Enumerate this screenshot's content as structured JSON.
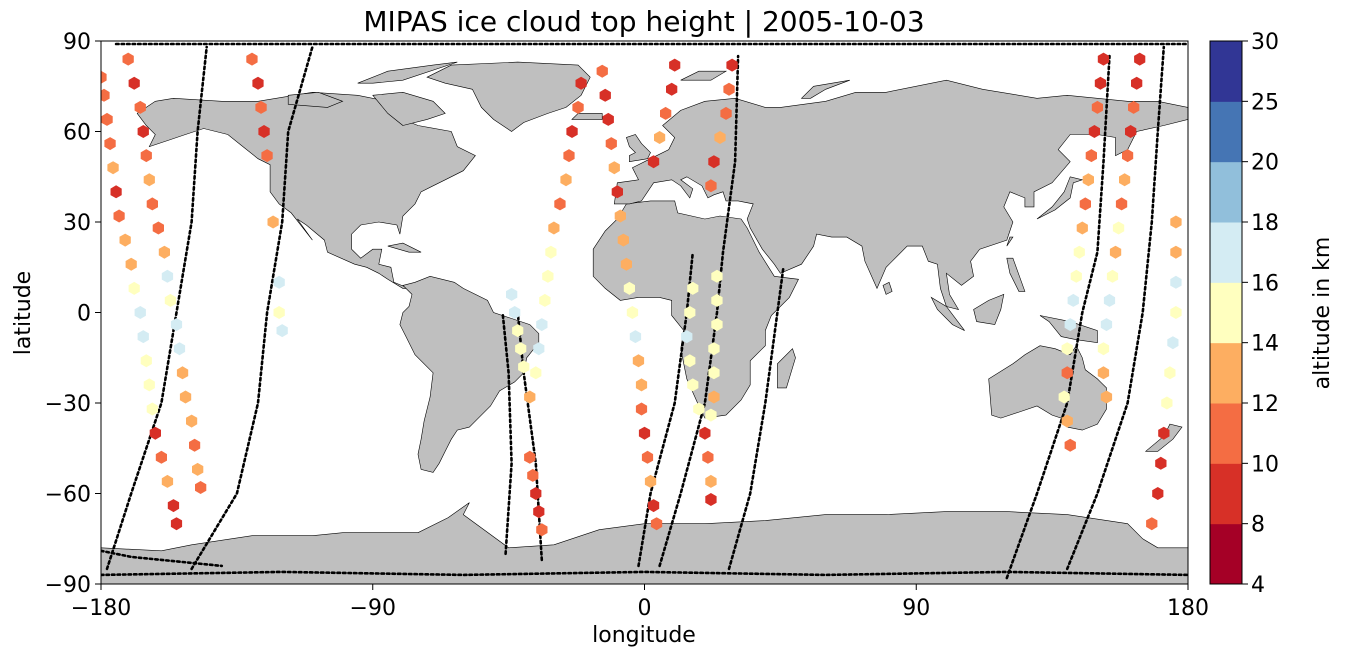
{
  "chart_data": {
    "type": "scatter",
    "title": "MIPAS ice cloud top height | 2005-10-03",
    "xlabel": "longitude",
    "ylabel": "latitude",
    "xlim": [
      -180,
      180
    ],
    "ylim": [
      -90,
      90
    ],
    "xticks": [
      -180,
      -90,
      0,
      90,
      180
    ],
    "xtick_labels": [
      "−180",
      "−90",
      "0",
      "90",
      "180"
    ],
    "yticks": [
      -90,
      -60,
      -30,
      0,
      30,
      60,
      90
    ],
    "ytick_labels": [
      "−90",
      "−60",
      "−30",
      "0",
      "30",
      "60",
      "90"
    ],
    "land_color": "#bfbfbf",
    "track_color": "#000000",
    "colorbar": {
      "label": "altitude in km",
      "boundaries": [
        4,
        8,
        10,
        12,
        14,
        16,
        18,
        20,
        25,
        30
      ],
      "tick_labels": [
        "4",
        "8",
        "10",
        "12",
        "14",
        "16",
        "18",
        "20",
        "25",
        "30"
      ],
      "colors": [
        "#a50026",
        "#d73027",
        "#f46d43",
        "#fdae61",
        "#fee090",
        "#ffffbf",
        "#e0f3f8",
        "#abd9e9",
        "#74add1",
        "#313695"
      ],
      "color_bins": [
        "#a50026",
        "#d73027",
        "#f46d43",
        "#fdae61",
        "#ffffbf",
        "#d4ecf3",
        "#91bfdb",
        "#4575b4",
        "#313695"
      ]
    },
    "series": [
      {
        "values": [
          [
            -180,
            78
          ],
          [
            -179,
            72
          ],
          [
            -178,
            64
          ],
          [
            -177,
            56
          ],
          [
            -176,
            48
          ],
          [
            -175,
            40
          ],
          [
            -174,
            32
          ],
          [
            -172,
            24
          ],
          [
            -170,
            16
          ],
          [
            -169,
            8
          ],
          [
            -167,
            0
          ],
          [
            -166,
            -8
          ],
          [
            -165,
            -16
          ],
          [
            -164,
            -24
          ],
          [
            -163,
            -32
          ],
          [
            -162,
            -40
          ],
          [
            -160,
            -48
          ],
          [
            -158,
            -56
          ],
          [
            -156,
            -64
          ],
          [
            -155,
            -70
          ]
        ]
      },
      {
        "values": [
          [
            -171,
            84
          ],
          [
            -169,
            76
          ],
          [
            -167,
            68
          ],
          [
            -166,
            60
          ],
          [
            -165,
            52
          ],
          [
            -164,
            44
          ],
          [
            -163,
            36
          ],
          [
            -161,
            28
          ],
          [
            -159,
            20
          ],
          [
            -158,
            12
          ],
          [
            -157,
            4
          ],
          [
            -155,
            -4
          ],
          [
            -154,
            -12
          ],
          [
            -153,
            -20
          ],
          [
            -152,
            -28
          ],
          [
            -150,
            -36
          ],
          [
            -149,
            -44
          ],
          [
            -148,
            -52
          ],
          [
            -147,
            -58
          ]
        ]
      },
      {
        "values": [
          [
            -130,
            84
          ],
          [
            -128,
            76
          ],
          [
            -127,
            68
          ],
          [
            -126,
            60
          ],
          [
            -125,
            52
          ],
          [
            -123,
            30
          ],
          [
            -121,
            10
          ],
          [
            -121,
            0
          ],
          [
            -120,
            -6
          ]
        ]
      },
      {
        "values": [
          [
            -44,
            6
          ],
          [
            -43,
            0
          ],
          [
            -42,
            -6
          ],
          [
            -41,
            -12
          ],
          [
            -40,
            -18
          ],
          [
            -38,
            -48
          ],
          [
            -37,
            -54
          ],
          [
            -36,
            -60
          ],
          [
            -35,
            -66
          ],
          [
            -34,
            -72
          ]
        ]
      },
      {
        "values": [
          [
            -21,
            76
          ],
          [
            -22,
            68
          ],
          [
            -24,
            60
          ],
          [
            -25,
            52
          ],
          [
            -26,
            44
          ],
          [
            -28,
            36
          ],
          [
            -30,
            28
          ],
          [
            -31,
            20
          ],
          [
            -32,
            12
          ],
          [
            -33,
            4
          ],
          [
            -34,
            -4
          ],
          [
            -35,
            -12
          ],
          [
            -36,
            -20
          ],
          [
            -38,
            -28
          ]
        ]
      },
      {
        "values": [
          [
            -14,
            80
          ],
          [
            -13,
            72
          ],
          [
            -12,
            64
          ],
          [
            -11,
            56
          ],
          [
            -10,
            48
          ],
          [
            -9,
            40
          ],
          [
            -8,
            32
          ],
          [
            -7,
            24
          ],
          [
            -6,
            16
          ],
          [
            -5,
            8
          ],
          [
            -4,
            0
          ],
          [
            -3,
            -8
          ],
          [
            -2,
            -16
          ],
          [
            -1,
            -24
          ],
          [
            -1,
            -32
          ],
          [
            0,
            -40
          ],
          [
            1,
            -48
          ],
          [
            2,
            -56
          ],
          [
            3,
            -64
          ],
          [
            4,
            -70
          ]
        ]
      },
      {
        "values": [
          [
            10,
            82
          ],
          [
            9,
            74
          ],
          [
            7,
            66
          ],
          [
            5,
            58
          ],
          [
            3,
            50
          ],
          [
            16,
            8
          ],
          [
            15,
            0
          ],
          [
            14,
            -8
          ],
          [
            15,
            -16
          ],
          [
            16,
            -24
          ],
          [
            18,
            -32
          ],
          [
            20,
            -40
          ],
          [
            21,
            -48
          ],
          [
            22,
            -56
          ],
          [
            22,
            -62
          ]
        ]
      },
      {
        "values": [
          [
            29,
            82
          ],
          [
            28,
            74
          ],
          [
            27,
            66
          ],
          [
            25,
            58
          ],
          [
            23,
            50
          ],
          [
            22,
            42
          ],
          [
            24,
            12
          ],
          [
            24,
            4
          ],
          [
            24,
            -4
          ],
          [
            23,
            -12
          ],
          [
            23,
            -20
          ],
          [
            23,
            -28
          ],
          [
            22,
            -34
          ]
        ]
      },
      {
        "values": [
          [
            152,
            84
          ],
          [
            151,
            76
          ],
          [
            150,
            68
          ],
          [
            149,
            60
          ],
          [
            148,
            52
          ],
          [
            147,
            44
          ],
          [
            146,
            36
          ],
          [
            145,
            28
          ],
          [
            144,
            20
          ],
          [
            143,
            12
          ],
          [
            142,
            4
          ],
          [
            141,
            -4
          ],
          [
            140,
            -12
          ],
          [
            140,
            -20
          ],
          [
            139,
            -28
          ],
          [
            140,
            -36
          ],
          [
            141,
            -44
          ]
        ]
      },
      {
        "values": [
          [
            164,
            84
          ],
          [
            163,
            76
          ],
          [
            162,
            68
          ],
          [
            161,
            60
          ],
          [
            160,
            52
          ],
          [
            159,
            44
          ],
          [
            158,
            36
          ],
          [
            157,
            28
          ],
          [
            156,
            20
          ],
          [
            155,
            12
          ],
          [
            154,
            4
          ],
          [
            153,
            -4
          ],
          [
            152,
            -12
          ],
          [
            152,
            -20
          ],
          [
            153,
            -28
          ]
        ]
      },
      {
        "values": [
          [
            176,
            30
          ],
          [
            176,
            20
          ],
          [
            176,
            10
          ],
          [
            176,
            0
          ],
          [
            175,
            -10
          ],
          [
            174,
            -20
          ],
          [
            173,
            -30
          ],
          [
            172,
            -40
          ],
          [
            171,
            -50
          ],
          [
            170,
            -60
          ],
          [
            168,
            -70
          ]
        ]
      }
    ]
  }
}
